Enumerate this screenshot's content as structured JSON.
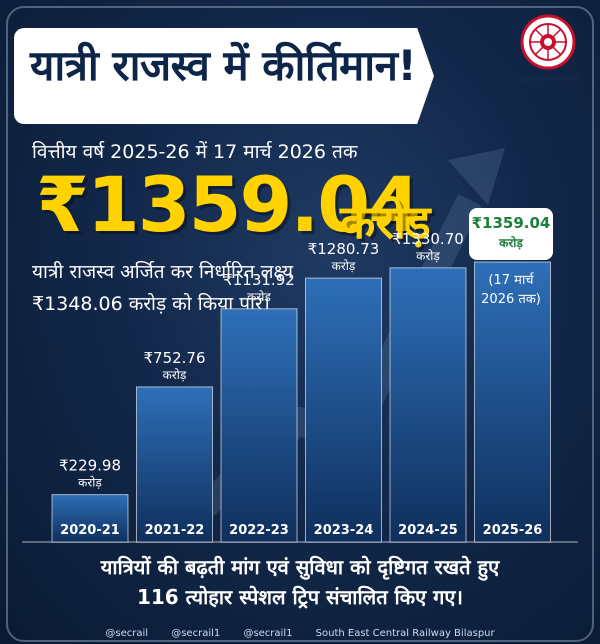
{
  "header": {
    "title": "यात्री राजस्व में कीर्तिमान!"
  },
  "logo": {
    "caption": "दक्षिण पूर्व मध्य रेलवे"
  },
  "summary": {
    "subtitle": "वित्तीय वर्ष 2025-26 में 17 मार्च 2026 तक",
    "amount": "₹1359.04",
    "amount_unit": "करोड़",
    "description_line1": "यात्री राजस्व अर्जित कर निर्धारित लक्ष्य",
    "description_line2": "₹1348.06 करोड़ को किया पार।"
  },
  "highlight": {
    "value": "₹1359.04",
    "unit": "करोड़",
    "note": "(17 मार्च 2026 तक)"
  },
  "chart_data": {
    "type": "bar",
    "categories": [
      "2020-21",
      "2021-22",
      "2022-23",
      "2023-24",
      "2024-25",
      "2025-26"
    ],
    "values": [
      229.98,
      752.76,
      1131.92,
      1280.73,
      1330.7,
      1359.04
    ],
    "value_labels": [
      "₹229.98",
      "₹752.76",
      "₹1131.92",
      "₹1280.73",
      "₹1330.70",
      "₹1359.04"
    ],
    "unit_label": "करोड़",
    "title": "",
    "xlabel": "",
    "ylabel": ""
  },
  "footer": {
    "line1": "यात्रियों की बढ़ती मांग एवं सुविधा को दृष्टिगत रखते हुए",
    "line2": "116 त्योहार स्पेशल ट्रिप संचालित किए गए।"
  },
  "social": {
    "items": [
      "@secrail",
      "@secrail1",
      "@secrail1",
      "South East Central Railway Bilaspur"
    ]
  },
  "colors": {
    "background": "#12284a",
    "accent": "#ffd200",
    "bar_top": "#2e6fb8",
    "bar_bottom": "#0f2f5c",
    "highlight_text": "#1c7f3a"
  }
}
